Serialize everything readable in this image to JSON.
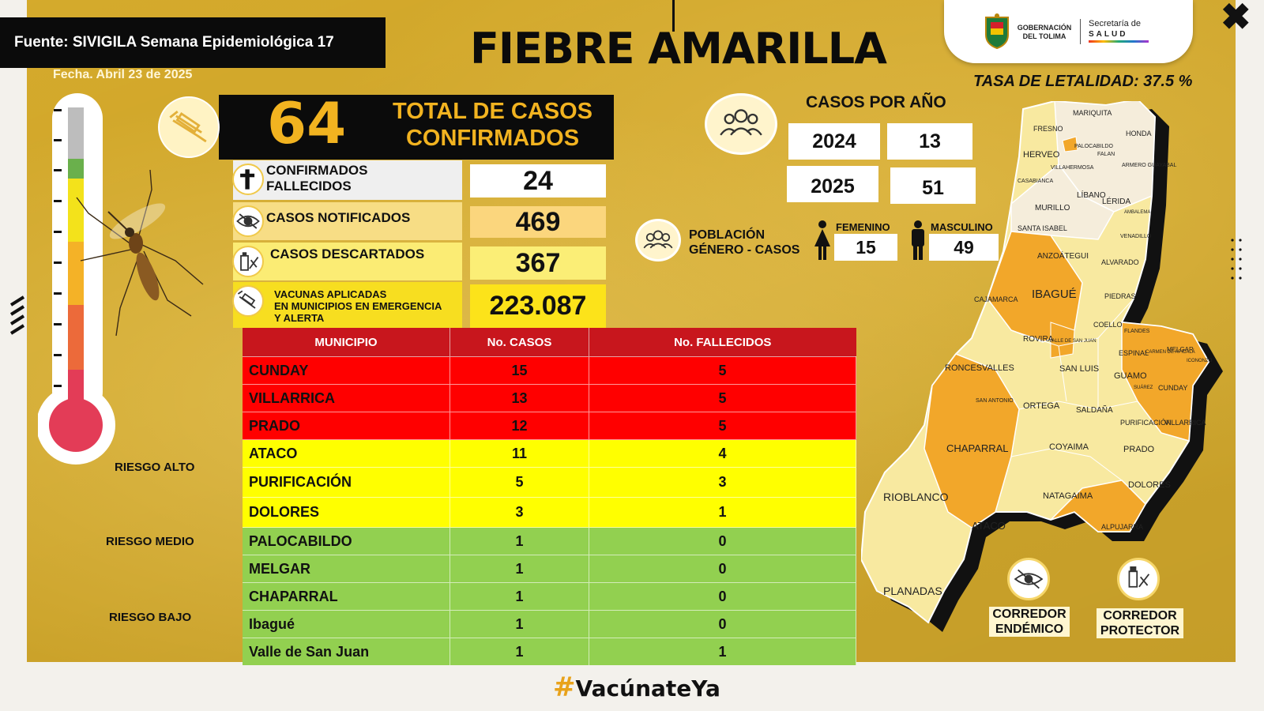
{
  "header": {
    "source": "Fuente: SIVIGILA Semana Epidemiológica 17",
    "date": "Fecha. Abril 23 de 2025",
    "title": "FIEBRE AMARILLA",
    "tasa": "TASA DE LETALIDAD: 37.5  %"
  },
  "logos": {
    "gobernacion_line1": "GOBERNACIÓN",
    "gobernacion_line2": "DEL TOLIMA",
    "secretaria_line1": "Secretaría de",
    "secretaria_line2": "SALUD"
  },
  "totals": {
    "total_value": "64",
    "total_label_line1": "TOTAL DE CASOS",
    "total_label_line2": "CONFIRMADOS",
    "stats": [
      {
        "label_line1": "CONFIRMADOS",
        "label_line2": "FALLECIDOS",
        "value": "24",
        "icon": "cross-icon"
      },
      {
        "label_line1": "CASOS NOTIFICADOS",
        "label_line2": "",
        "value": "469",
        "icon": "eye-icon"
      },
      {
        "label_line1": "CASOS DESCARTADOS",
        "label_line2": "",
        "value": "367",
        "icon": "vial-icon"
      },
      {
        "label_line1": "VACUNAS APLICADAS",
        "label_line2": "EN MUNICIPIOS EN EMERGENCIA",
        "label_line3": "Y ALERTA",
        "value": "223.087",
        "icon": "syringe-icon"
      }
    ]
  },
  "casos_por_anio": {
    "title": "CASOS POR AÑO",
    "rows": [
      {
        "year": "2024",
        "value": "13"
      },
      {
        "year": "2025",
        "value": "51"
      }
    ]
  },
  "poblacion": {
    "label_line1": "POBLACIÓN",
    "label_line2": "GÉNERO - CASOS",
    "femenino_label": "FEMENINO",
    "femenino_value": "15",
    "masculino_label": "MASCULINO",
    "masculino_value": "49"
  },
  "risk": {
    "alto": "RIESGO ALTO",
    "medio": "RIESGO MEDIO",
    "bajo": "RIESGO BAJO"
  },
  "table": {
    "headers": [
      "MUNICIPIO",
      "No. CASOS",
      "No. FALLECIDOS"
    ],
    "rows": [
      {
        "municipio": "CUNDAY",
        "casos": "15",
        "fallecidos": "5",
        "level": "alto"
      },
      {
        "municipio": "VILLARRICA",
        "casos": "13",
        "fallecidos": "5",
        "level": "alto"
      },
      {
        "municipio": "PRADO",
        "casos": "12",
        "fallecidos": "5",
        "level": "alto"
      },
      {
        "municipio": "ATACO",
        "casos": "11",
        "fallecidos": "4",
        "level": "medio"
      },
      {
        "municipio": "PURIFICACIÓN",
        "casos": "5",
        "fallecidos": "3",
        "level": "medio"
      },
      {
        "municipio": "DOLORES",
        "casos": "3",
        "fallecidos": "1",
        "level": "medio"
      },
      {
        "municipio": "PALOCABILDO",
        "casos": "1",
        "fallecidos": "0",
        "level": "bajo"
      },
      {
        "municipio": "MELGAR",
        "casos": "1",
        "fallecidos": "0",
        "level": "bajo"
      },
      {
        "municipio": "CHAPARRAL",
        "casos": "1",
        "fallecidos": "0",
        "level": "bajo"
      },
      {
        "municipio": "Ibagué",
        "casos": "1",
        "fallecidos": "0",
        "level": "bajo"
      },
      {
        "municipio": "Valle de San Juan",
        "casos": "1",
        "fallecidos": "1",
        "level": "bajo"
      }
    ]
  },
  "map": {
    "labels": [
      "MARIQUITA",
      "FRESNO",
      "HONDA",
      "PALOCABILDO",
      "FALAN",
      "HERVEO",
      "VILLAHERMOSA",
      "ARMERO GUAYABAL",
      "CASABIANCA",
      "LÍBANO",
      "LÉRIDA",
      "MURILLO",
      "AMBALEMA",
      "SANTA ISABEL",
      "VENADILLO",
      "ANZOÁTEGUI",
      "ALVARADO",
      "IBAGUÉ",
      "CAJAMARCA",
      "PIEDRAS",
      "COELLO",
      "FLANDES",
      "ROVIRA",
      "VALLE DE SAN JUAN",
      "ESPINAL",
      "CARMEN DE APICALÁ",
      "MELGAR",
      "ICONONZO",
      "RONCESVALLES",
      "SAN LUIS",
      "GUAMO",
      "SUÁREZ",
      "CUNDAY",
      "SAN ANTONIO",
      "ORTEGA",
      "SALDAÑA",
      "PURIFICACIÓN",
      "VILLARRICA",
      "CHAPARRAL",
      "COYAIMA",
      "PRADO",
      "RIOBLANCO",
      "NATAGAIMA",
      "DOLORES",
      "ATACO",
      "ALPUJARRA",
      "PLANADAS"
    ],
    "corredor_endemico_line1": "CORREDOR",
    "corredor_endemico_line2": "ENDÉMICO",
    "corredor_protector_line1": "CORREDOR",
    "corredor_protector_line2": "PROTECTOR"
  },
  "footer": {
    "hashtag_symbol": "#",
    "hashtag_text": "VacúnateYa"
  },
  "colors": {
    "panel": "#e0b32e",
    "riesgo_alto": "#ff0000",
    "riesgo_medio": "#ffff00",
    "riesgo_bajo": "#92d050",
    "header_red": "#c8161d",
    "accent": "#f2b320"
  }
}
